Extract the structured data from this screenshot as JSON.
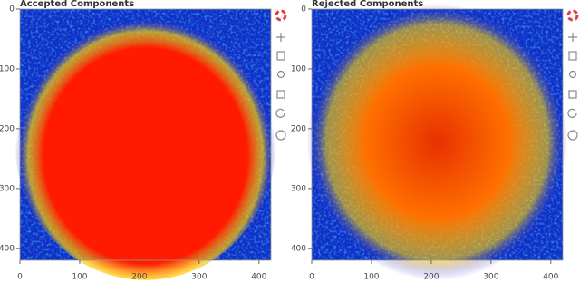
{
  "chart_data": [
    {
      "type": "image",
      "title": "Accepted Components",
      "xlim": [
        0,
        420
      ],
      "ylim": [
        420,
        0
      ],
      "xticks": [
        0,
        100,
        200,
        300,
        400
      ],
      "yticks": [
        0,
        100,
        200,
        300,
        400
      ]
    },
    {
      "type": "image",
      "title": "Rejected Components",
      "xlim": [
        0,
        420
      ],
      "ylim": [
        420,
        0
      ],
      "xticks": [
        0,
        100,
        200,
        300,
        400
      ],
      "yticks": [
        0,
        100,
        200,
        300,
        400
      ]
    }
  ]
}
